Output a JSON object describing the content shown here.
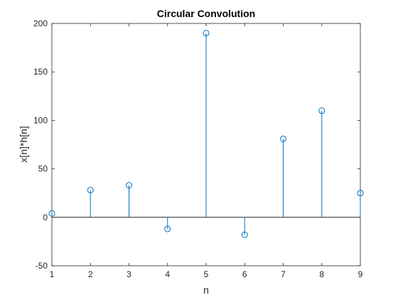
{
  "chart_data": {
    "type": "stem",
    "title": "Circular Convolution",
    "xlabel": "n",
    "ylabel": "x[n]*h[n]",
    "x": [
      1,
      2,
      3,
      4,
      5,
      6,
      7,
      8,
      9
    ],
    "y": [
      4,
      28,
      33,
      -12,
      190,
      -18,
      81,
      110,
      25
    ],
    "xlim": [
      1,
      9
    ],
    "ylim": [
      -50,
      200
    ],
    "xticks": [
      "1",
      "2",
      "3",
      "4",
      "5",
      "6",
      "7",
      "8",
      "9"
    ],
    "yticks": [
      "-50",
      "0",
      "50",
      "100",
      "150",
      "200"
    ],
    "ytick_values": [
      -50,
      0,
      50,
      100,
      150,
      200
    ],
    "grid": false,
    "baseline": 0,
    "marker": "open-circle",
    "colors": {
      "stem": "#0072BD",
      "axes": "#262626",
      "baseline": "#000000"
    }
  }
}
